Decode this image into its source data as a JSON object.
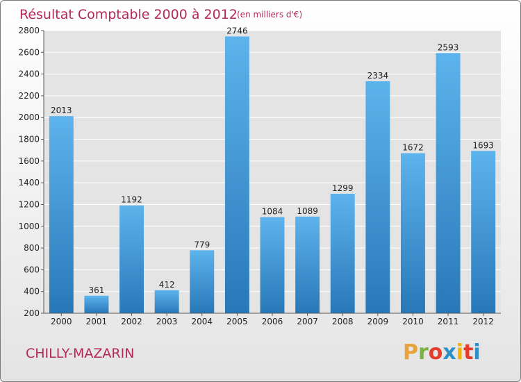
{
  "header": {
    "title": "Résultat Comptable 2000 à 2012",
    "subtitle": "(en milliers d'€)"
  },
  "footer": {
    "place": "CHILLY-MAZARIN",
    "logo": "Proxiti",
    "logo_colors": [
      "#e8a33b",
      "#7bb343",
      "#e33c2d",
      "#2d8ec8",
      "#f0b400",
      "#e33c2d",
      "#2d8ec8"
    ]
  },
  "chart_data": {
    "type": "bar",
    "title": "Résultat Comptable 2000 à 2012",
    "subtitle": "(en milliers d'€)",
    "categories": [
      "2000",
      "2001",
      "2002",
      "2003",
      "2004",
      "2005",
      "2006",
      "2007",
      "2008",
      "2009",
      "2010",
      "2011",
      "2012"
    ],
    "values": [
      2013,
      361,
      1192,
      412,
      779,
      2746,
      1084,
      1089,
      1299,
      2334,
      1672,
      2593,
      1693
    ],
    "ylim": [
      200,
      2800
    ],
    "yticks": [
      200,
      400,
      600,
      800,
      1000,
      1200,
      1400,
      1600,
      1800,
      2000,
      2200,
      2400,
      2600,
      2800
    ],
    "grid": true,
    "bar_color_top": "#5db3ec",
    "bar_color_bottom": "#2878b8"
  }
}
